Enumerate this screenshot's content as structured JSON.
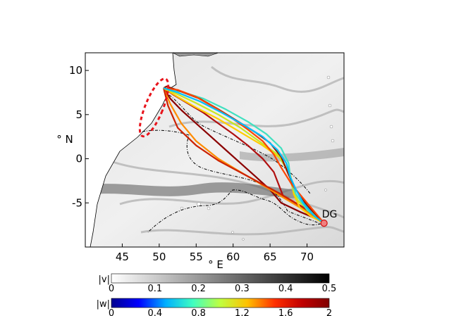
{
  "chart_data": {
    "type": "line",
    "xlabel": "° E",
    "ylabel": "° N",
    "xlim": [
      40,
      75
    ],
    "ylim": [
      -10,
      12
    ],
    "xticks": [
      45,
      50,
      55,
      60,
      65,
      70
    ],
    "yticks": [
      10,
      5,
      0,
      -5
    ],
    "annotations": [
      {
        "text": "DG",
        "x": 72.3,
        "y": -7.3
      }
    ],
    "highlight_ellipse": {
      "center": [
        49.3,
        5.8
      ],
      "rx_deg": 1.2,
      "ry_deg": 3.5,
      "rotation_deg": 22,
      "color": "#e8141c"
    },
    "colorbars": [
      {
        "label": "|v|",
        "min": 0,
        "max": 0.5,
        "ticks": [
          0,
          0.1,
          0.2,
          0.3,
          0.4,
          0.5
        ],
        "tick_labels": [
          "0",
          "0.1",
          "0.2",
          "0.3",
          "0.4",
          "0.5"
        ],
        "colors": [
          "#ffffff",
          "#000000"
        ]
      },
      {
        "label": "|w|",
        "min": 0,
        "max": 2,
        "ticks": [
          0,
          0.4,
          0.8,
          1.2,
          1.6,
          2
        ],
        "tick_labels": [
          "0",
          "0.4",
          "0.8",
          "1.2",
          "1.6",
          "2"
        ],
        "colors": [
          "#00008f",
          "#0000ff",
          "#00b0ff",
          "#40ffc0",
          "#c0ff40",
          "#ffc000",
          "#ff3000",
          "#c00000",
          "#800000"
        ]
      }
    ],
    "series": [
      {
        "color": "#8b0000",
        "x": [
          72.3,
          71.0,
          69.0,
          67.5,
          66.5,
          65.0,
          63.0,
          61.0,
          59.0,
          57.0,
          55.0,
          53.0,
          51.5,
          50.6
        ],
        "y": [
          -7.3,
          -6.7,
          -6.0,
          -5.4,
          -5.0,
          -3.5,
          -2.0,
          -0.5,
          1.0,
          2.5,
          4.0,
          5.5,
          6.8,
          8.0
        ]
      },
      {
        "color": "#b01010",
        "x": [
          72.3,
          70.5,
          68.5,
          66.8,
          66.2,
          65.5,
          64.0,
          62.0,
          60.0,
          58.0,
          56.0,
          54.0,
          52.0,
          50.6
        ],
        "y": [
          -7.3,
          -6.2,
          -5.2,
          -4.3,
          -3.0,
          -1.5,
          0.0,
          1.5,
          2.8,
          4.0,
          5.2,
          6.2,
          7.2,
          8.0
        ]
      },
      {
        "color": "#ff8c00",
        "x": [
          72.3,
          70.0,
          67.0,
          64.0,
          61.0,
          58.0,
          55.0,
          53.0,
          51.5,
          50.6
        ],
        "y": [
          -7.3,
          -6.0,
          -4.5,
          -3.0,
          -1.5,
          0.0,
          2.0,
          4.0,
          6.2,
          8.0
        ]
      },
      {
        "color": "#cc2200",
        "x": [
          72.3,
          69.5,
          66.0,
          62.0,
          58.0,
          55.0,
          52.5,
          51.2,
          50.6
        ],
        "y": [
          -7.3,
          -5.5,
          -3.8,
          -2.0,
          -0.2,
          1.5,
          3.5,
          6.0,
          8.0
        ]
      },
      {
        "color": "#ffcc00",
        "x": [
          72.3,
          70.5,
          69.0,
          68.2,
          67.8,
          66.5,
          64.0,
          61.0,
          58.0,
          55.0,
          52.5,
          50.6
        ],
        "y": [
          -7.3,
          -6.5,
          -5.5,
          -4.0,
          -2.0,
          0.0,
          1.5,
          3.0,
          4.5,
          5.8,
          7.0,
          8.0
        ]
      },
      {
        "color": "#c8e620",
        "x": [
          72.3,
          70.5,
          68.8,
          68.0,
          67.5,
          66.0,
          63.5,
          61.0,
          58.0,
          55.0,
          52.5,
          50.6
        ],
        "y": [
          -7.3,
          -6.0,
          -4.8,
          -3.2,
          -1.5,
          0.5,
          2.0,
          3.5,
          5.0,
          6.3,
          7.3,
          8.0
        ]
      },
      {
        "color": "#40e0c0",
        "x": [
          72.3,
          70.0,
          68.5,
          67.8,
          67.5,
          66.5,
          64.5,
          62.0,
          59.0,
          56.0,
          53.0,
          50.6
        ],
        "y": [
          -7.3,
          -5.8,
          -4.0,
          -2.5,
          -0.5,
          1.2,
          2.8,
          4.2,
          5.6,
          6.8,
          7.6,
          8.0
        ]
      },
      {
        "color": "#8b1a00",
        "x": [
          72.3,
          70.0,
          68.5,
          67.5,
          66.5,
          65.0,
          63.0,
          60.5,
          58.0,
          55.5,
          53.0,
          51.0,
          50.6
        ],
        "y": [
          -7.3,
          -5.3,
          -3.5,
          -1.8,
          0.2,
          1.8,
          3.0,
          4.3,
          5.6,
          6.8,
          7.6,
          8.2,
          8.0
        ]
      },
      {
        "color": "#ff4500",
        "x": [
          72.3,
          70.0,
          68.0,
          66.5,
          65.5,
          64.0,
          62.0,
          60.0,
          57.5,
          55.0,
          52.5,
          50.6
        ],
        "y": [
          -7.3,
          -5.0,
          -3.0,
          -1.0,
          0.5,
          2.0,
          3.3,
          4.5,
          5.8,
          7.0,
          7.8,
          8.0
        ]
      },
      {
        "color": "#00bfff",
        "x": [
          72.3,
          71.0,
          69.5,
          68.5,
          67.7,
          67.2,
          66.0,
          64.0,
          61.5,
          58.5,
          55.5,
          52.5,
          50.6
        ],
        "y": [
          -7.3,
          -6.5,
          -5.0,
          -3.5,
          -2.0,
          -0.5,
          1.0,
          2.5,
          3.8,
          5.2,
          6.5,
          7.5,
          8.0
        ]
      }
    ]
  }
}
